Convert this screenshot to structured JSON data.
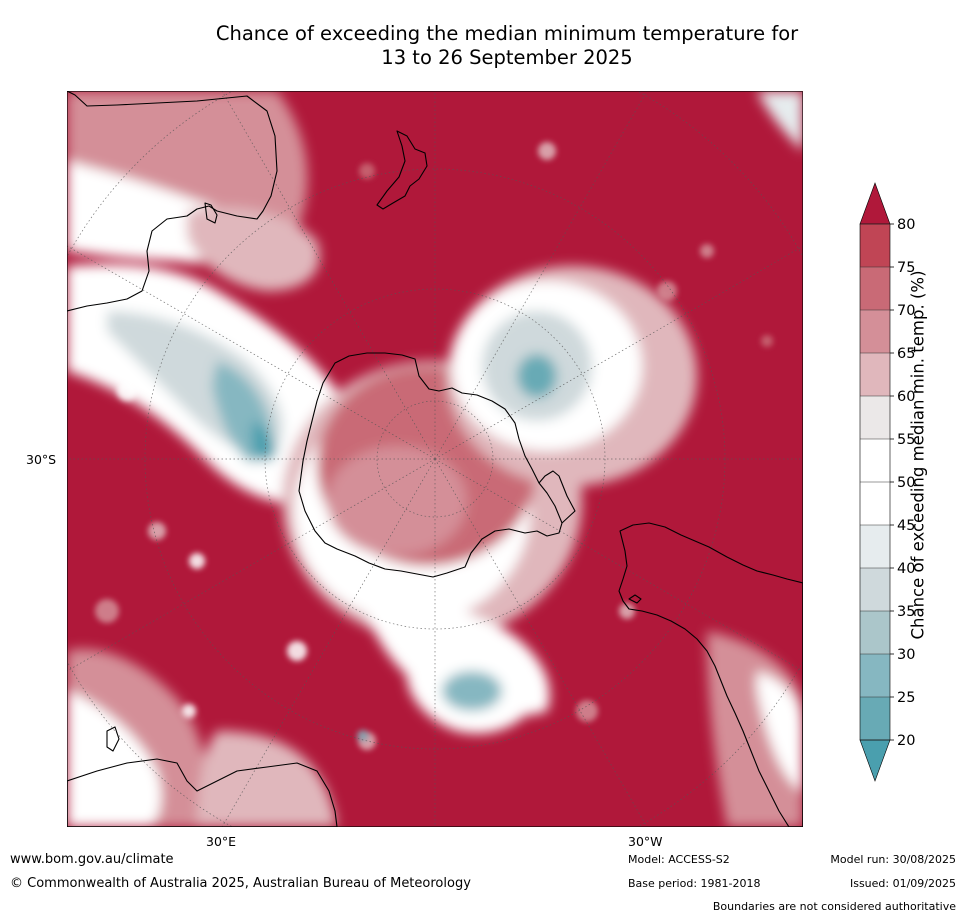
{
  "title_line1": "Chance of exceeding the median minimum temperature for",
  "title_line2": "13 to 26 September 2025",
  "map": {
    "latitude_label": "30°S",
    "longitude_labels": [
      "30°E",
      "30°W"
    ],
    "projection": "south-polar-stereographic",
    "colors": {
      "ocean_deep_red": "#b0183a",
      "land_outline": "#000000",
      "graticule": "#555555"
    },
    "icons": [
      "antarctica-outline",
      "new-zealand",
      "south-america",
      "southern-africa",
      "australia"
    ]
  },
  "colorbar": {
    "title": "Chance of exceeding median min. temp. (%)",
    "ticks": [
      "80",
      "75",
      "70",
      "65",
      "60",
      "55",
      "50",
      "45",
      "40",
      "35",
      "30",
      "25",
      "20"
    ],
    "bands": [
      {
        "color": "#b5263e"
      },
      {
        "color": "#c04555"
      },
      {
        "color": "#c96a76"
      },
      {
        "color": "#d48f98"
      },
      {
        "color": "#e0b7bc"
      },
      {
        "color": "#ebe8e8"
      },
      {
        "color": "#ffffff"
      },
      {
        "color": "#ffffff"
      },
      {
        "color": "#e6ecee"
      },
      {
        "color": "#cfd9dc"
      },
      {
        "color": "#abc6ca"
      },
      {
        "color": "#86b7c1"
      },
      {
        "color": "#68aab5"
      },
      {
        "color": "#4a9fae"
      }
    ],
    "top_arrow_color": "#b0183a",
    "bottom_arrow_color": "#4a9fae"
  },
  "footer": {
    "website": "www.bom.gov.au/climate",
    "copyright": "© Commonwealth of Australia 2025, Australian Bureau of Meteorology",
    "model": "Model: ACCESS-S2",
    "base_period": "Base period: 1981-2018",
    "model_run": "Model run: 30/08/2025",
    "issued": "Issued: 01/09/2025",
    "boundaries": "Boundaries are not considered authoritative"
  }
}
